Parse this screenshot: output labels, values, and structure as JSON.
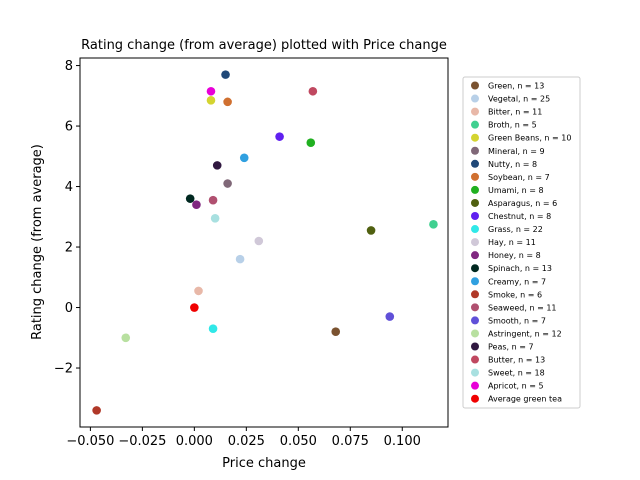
{
  "chart_data": {
    "type": "scatter",
    "title": "Rating change (from average) plotted with Price change",
    "xlabel": "Price change",
    "ylabel": "Rating change (from average)",
    "xlim": [
      -0.055,
      0.122
    ],
    "ylim": [
      -3.95,
      8.25
    ],
    "xticks": [
      -0.05,
      -0.025,
      0.0,
      0.025,
      0.05,
      0.075,
      0.1
    ],
    "xtick_labels": [
      "−0.050",
      "−0.025",
      "0.000",
      "0.025",
      "0.050",
      "0.075",
      "0.100"
    ],
    "yticks": [
      -2,
      0,
      2,
      4,
      6,
      8
    ],
    "ytick_labels": [
      "−2",
      "0",
      "2",
      "4",
      "6",
      "8"
    ],
    "grid": false,
    "legend_position": "right",
    "series": [
      {
        "name": "Green, n = 13",
        "color": "#7a5230",
        "x": 0.068,
        "y": -0.8
      },
      {
        "name": "Vegetal, n = 25",
        "color": "#b8d0e8",
        "x": 0.022,
        "y": 1.6
      },
      {
        "name": "Bitter, n = 11",
        "color": "#e8b8a8",
        "x": 0.002,
        "y": 0.55
      },
      {
        "name": "Broth, n = 5",
        "color": "#40d090",
        "x": 0.115,
        "y": 2.75
      },
      {
        "name": "Green Beans, n = 10",
        "color": "#d4d430",
        "x": 0.008,
        "y": 6.85
      },
      {
        "name": "Mineral, n = 9",
        "color": "#806878",
        "x": 0.016,
        "y": 4.1
      },
      {
        "name": "Nutty, n = 8",
        "color": "#204878",
        "x": 0.015,
        "y": 7.7
      },
      {
        "name": "Soybean, n = 7",
        "color": "#d07030",
        "x": 0.016,
        "y": 6.8
      },
      {
        "name": "Umami, n = 8",
        "color": "#20b020",
        "x": 0.056,
        "y": 5.45
      },
      {
        "name": "Asparagus, n = 6",
        "color": "#506010",
        "x": 0.085,
        "y": 2.55
      },
      {
        "name": "Chestnut, n = 8",
        "color": "#6020f0",
        "x": 0.041,
        "y": 5.65
      },
      {
        "name": "Grass, n = 22",
        "color": "#30e8e8",
        "x": 0.009,
        "y": -0.7
      },
      {
        "name": "Hay, n = 11",
        "color": "#d0c8d8",
        "x": 0.031,
        "y": 2.2
      },
      {
        "name": "Honey, n = 8",
        "color": "#802880",
        "x": 0.001,
        "y": 3.4
      },
      {
        "name": "Spinach, n = 13",
        "color": "#002820",
        "x": -0.002,
        "y": 3.6
      },
      {
        "name": "Creamy, n = 7",
        "color": "#30a0e0",
        "x": 0.024,
        "y": 4.95
      },
      {
        "name": "Smoke, n = 6",
        "color": "#b03828",
        "x": -0.047,
        "y": -3.4
      },
      {
        "name": "Seaweed, n = 11",
        "color": "#b05070",
        "x": 0.009,
        "y": 3.55
      },
      {
        "name": "Smooth, n = 7",
        "color": "#6050d8",
        "x": 0.094,
        "y": -0.3
      },
      {
        "name": "Astringent, n = 12",
        "color": "#b8e0a0",
        "x": -0.033,
        "y": -1.0
      },
      {
        "name": "Peas, n = 7",
        "color": "#301840",
        "x": 0.011,
        "y": 4.7
      },
      {
        "name": "Butter, n = 13",
        "color": "#c04860",
        "x": 0.057,
        "y": 7.15
      },
      {
        "name": "Sweet, n = 18",
        "color": "#a8e0e0",
        "x": 0.01,
        "y": 2.95
      },
      {
        "name": "Apricot, n = 5",
        "color": "#e800d8",
        "x": 0.008,
        "y": 7.15
      },
      {
        "name": "Average green tea",
        "color": "#f00000",
        "x": 0.0,
        "y": 0.0
      }
    ]
  }
}
